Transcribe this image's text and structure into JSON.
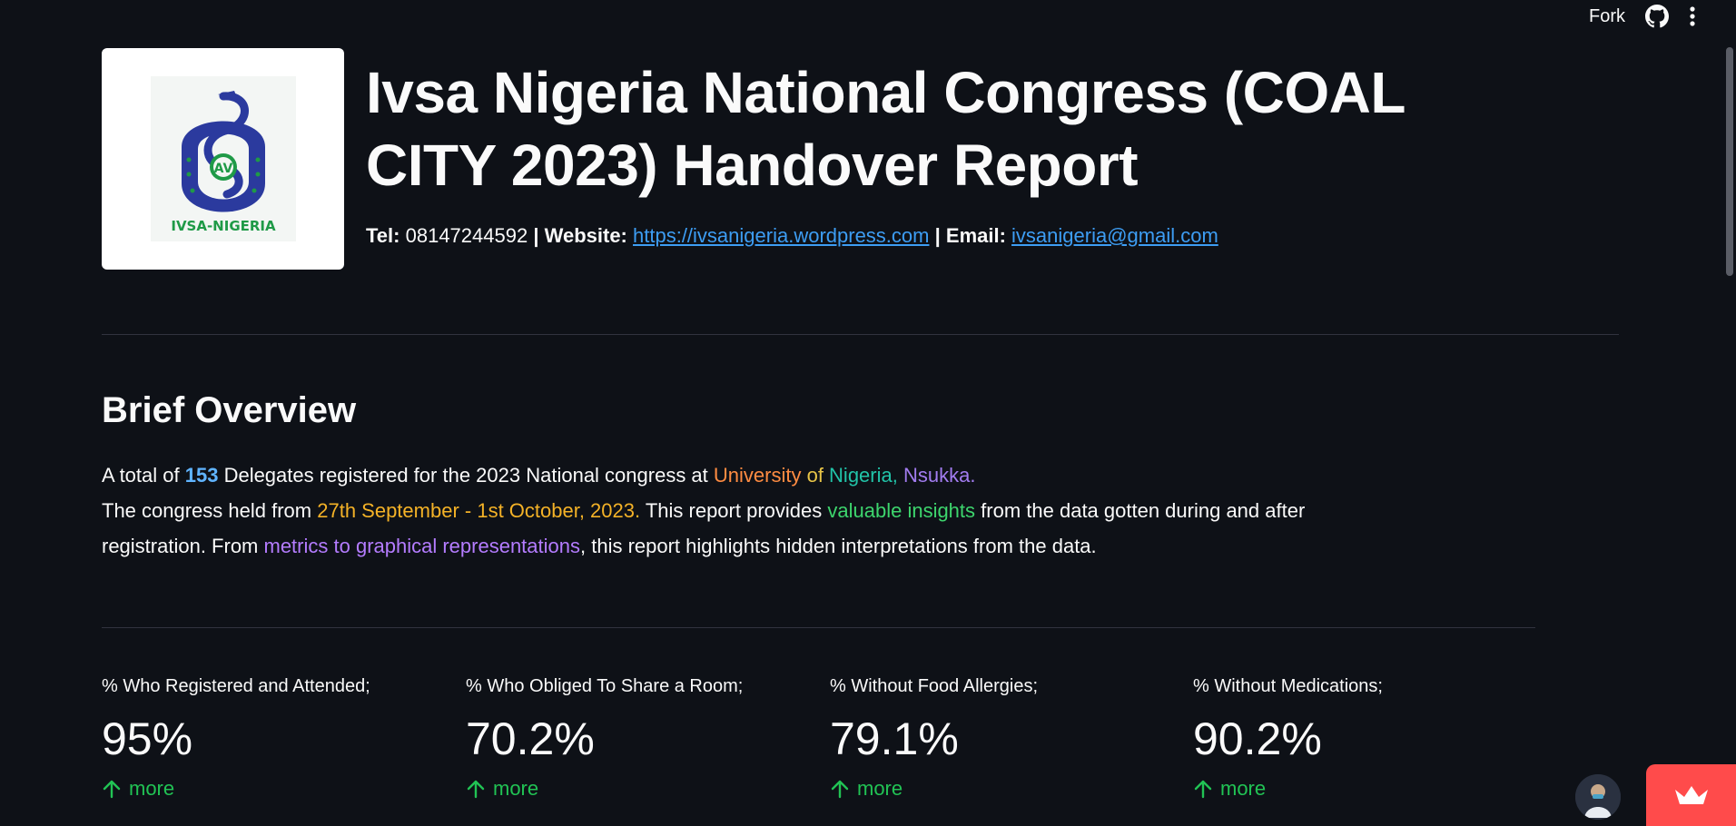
{
  "toolbar": {
    "fork_label": "Fork",
    "github_icon": "github-icon",
    "menu_icon": "kebab-menu-icon"
  },
  "header": {
    "logo_alt": "IVSA-NIGERIA",
    "logo_text": "IVSA-NIGERIA",
    "title": "Ivsa Nigeria National Congress (COAL CITY 2023) Handover Report",
    "contact": {
      "tel_label": "Tel:",
      "tel_value": "08147244592",
      "sep1": "|",
      "website_label": "Website:",
      "website_value": "https://ivsanigeria.wordpress.com",
      "sep2": "|",
      "email_label": "Email:",
      "email_value": "ivsanigeria@gmail.com"
    }
  },
  "overview": {
    "title": "Brief Overview",
    "p1_a": "A total of ",
    "p1_count": "153",
    "p1_b": " Delegates registered for the 2023 National congress at ",
    "p1_w1": "University",
    "p1_w2": " of ",
    "p1_w3": "Nigeria,",
    "p1_w4": " Nsukka.",
    "p2_a": "The congress held from ",
    "p2_dates": "27th September - 1st October, 2023.",
    "p2_b": " This report provides ",
    "p2_insights": "valuable insights",
    "p2_c": " from the data gotten during and after registration. From ",
    "p2_metrics": "metrics to graphical representations",
    "p2_d": ", this report highlights hidden interpretations from the data."
  },
  "metrics": [
    {
      "label": "% Who Registered and Attended;",
      "value": "95%",
      "delta": "more"
    },
    {
      "label": "% Who Obliged To Share a Room;",
      "value": "70.2%",
      "delta": "more"
    },
    {
      "label": "% Without Food Allergies;",
      "value": "79.1%",
      "delta": "more"
    },
    {
      "label": "% Without Medications;",
      "value": "90.2%",
      "delta": "more"
    }
  ],
  "colors": {
    "background": "#0e1117",
    "link": "#3d9df3",
    "delta_up": "#21c354",
    "badge": "#ff4b4b",
    "logo_blue": "#2b3a9e",
    "logo_green": "#1f9a47"
  }
}
